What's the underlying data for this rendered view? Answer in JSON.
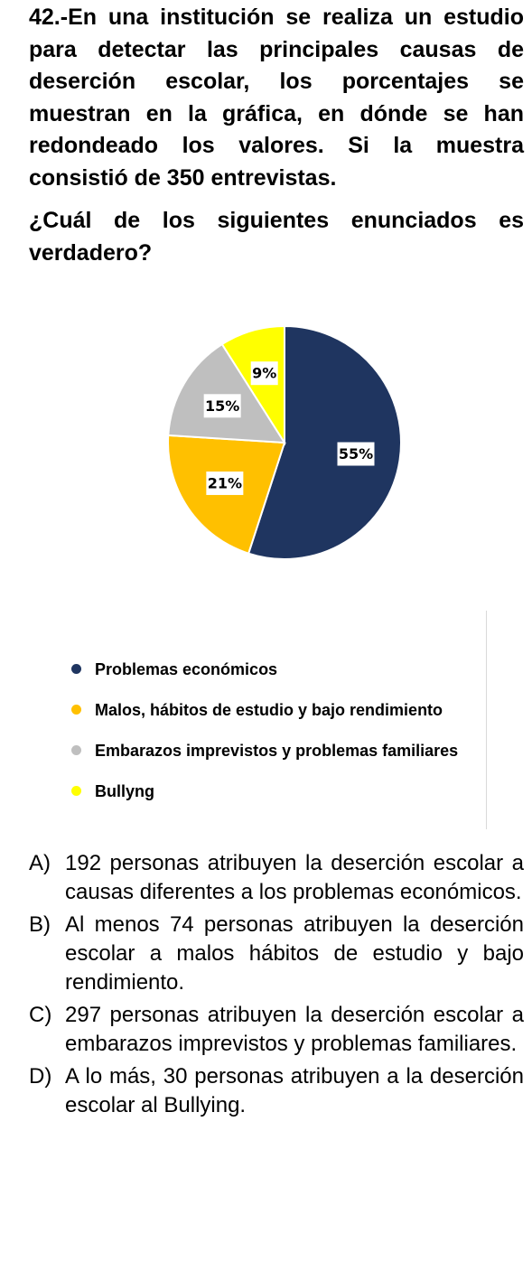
{
  "problem": {
    "text": "42.-En una institución se realiza un estudio para detectar las principales causas de deserción escolar, los porcentajes se muestran en la gráfica, en dónde se han redondeado los valores. Si la muestra consistió de 350 entrevistas.",
    "question": "¿Cuál de los siguientes enunciados es verdadero?"
  },
  "chart_data": {
    "type": "pie",
    "title": "",
    "categories": [
      "Problemas económicos",
      "Malos, hábitos de estudio y bajo rendimiento",
      "Embarazos imprevistos y problemas familiares",
      "Bullyng"
    ],
    "values": [
      55,
      21,
      15,
      9
    ],
    "data_labels": [
      "55%",
      "21%",
      "15%",
      "9%"
    ],
    "colors": [
      "#1f3560",
      "#ffc000",
      "#bfbfbf",
      "#ffff00"
    ],
    "legend_position": "bottom",
    "start": "top, clockwise"
  },
  "options": [
    {
      "letter": "A)",
      "text": "192 personas atribuyen la deserción escolar a causas diferentes a los problemas económicos."
    },
    {
      "letter": "B)",
      "text": "Al menos 74 personas atribuyen la deserción escolar a malos hábitos de estudio y bajo rendimiento."
    },
    {
      "letter": "C)",
      "text": "297 personas atribuyen la deserción escolar a embarazos imprevistos y problemas familiares."
    },
    {
      "letter": "D)",
      "text": "A lo más, 30 personas atribuyen a la deserción escolar al Bullying."
    }
  ]
}
